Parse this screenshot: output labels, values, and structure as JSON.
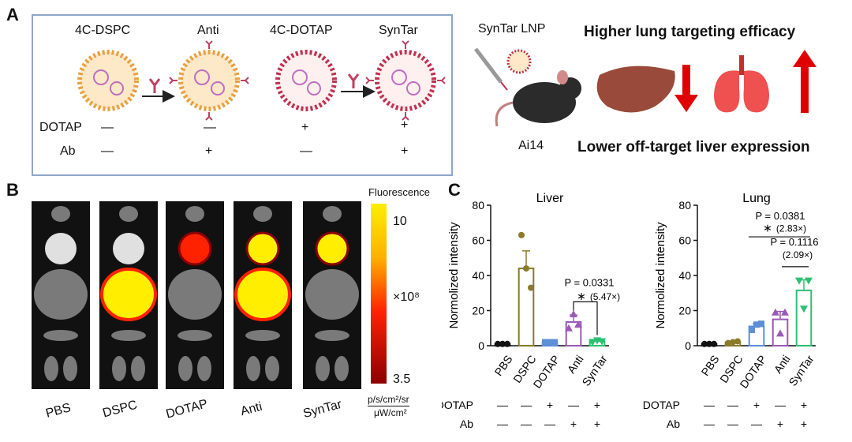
{
  "panels": {
    "a": "A",
    "b": "B",
    "c": "C"
  },
  "panel_a": {
    "formulations": [
      "4C-DSPC",
      "Anti",
      "4C-DOTAP",
      "SynTar"
    ],
    "row_labels": {
      "dotap": "DOTAP",
      "ab": "Ab"
    },
    "dotap_marks": [
      "—",
      "—",
      "+",
      "+"
    ],
    "ab_marks": [
      "—",
      "+",
      "—",
      "+"
    ],
    "lnp_label": "SynTar LNP",
    "mouse_label": "Ai14",
    "headline_top": "Higher lung targeting efficacy",
    "headline_bottom": "Lower off-target liver expression"
  },
  "panel_b": {
    "groups": [
      "PBS",
      "DSPC",
      "DOTAP",
      "Anti",
      "SynTar"
    ],
    "colorbar": {
      "title": "Fluorescence",
      "max": "10",
      "mid": "×10⁸",
      "min": "3.5",
      "unit_top": "p/s/cm²/sr",
      "unit_bottom": "μW/cm²"
    },
    "colors": {
      "low": "#8b0000",
      "mid": "#ff2200",
      "high": "#ffee00",
      "tissue": "#7a7a7a",
      "bg": "#111111"
    }
  },
  "chart_data": [
    {
      "type": "bar",
      "title": "Liver",
      "ylabel": "Normolized intensity",
      "ylim": [
        0,
        80
      ],
      "yticks": [
        "0",
        "20",
        "40",
        "60",
        "80"
      ],
      "categories": [
        "PBS",
        "DSPC",
        "DOTAP",
        "Anti",
        "SynTar"
      ],
      "values": [
        1,
        44,
        2,
        13.5,
        2.5
      ],
      "errors": [
        0.2,
        10,
        0.3,
        4,
        1
      ],
      "points": [
        [
          1,
          1,
          1
        ],
        [
          63,
          44,
          33
        ],
        [
          2,
          2,
          2
        ],
        [
          10,
          18,
          12
        ],
        [
          2,
          3,
          2.5
        ]
      ],
      "colors": [
        "#111111",
        "#8a7a2a",
        "#5b8fd6",
        "#9b59b6",
        "#2fbf71"
      ],
      "markers": [
        "circle",
        "circle",
        "square",
        "triangle",
        "triangle-down"
      ],
      "annotations": [
        {
          "p": "P = 0.0331",
          "star": "∗",
          "fold": "(5.47×)"
        }
      ],
      "dotap": [
        "—",
        "—",
        "+",
        "—",
        "+"
      ],
      "ab": [
        "—",
        "—",
        "—",
        "+",
        "+"
      ]
    },
    {
      "type": "bar",
      "title": "Lung",
      "ylabel": "Normolized intensity",
      "ylim": [
        0,
        80
      ],
      "yticks": [
        "0",
        "20",
        "40",
        "60",
        "80"
      ],
      "categories": [
        "PBS",
        "DSPC",
        "DOTAP",
        "Anti",
        "SynTar"
      ],
      "values": [
        1,
        2,
        11,
        15,
        31.5
      ],
      "errors": [
        0.2,
        0.5,
        1.5,
        4.5,
        6
      ],
      "points": [
        [
          1,
          1,
          1
        ],
        [
          1.5,
          2,
          2.5
        ],
        [
          9,
          12,
          12.5
        ],
        [
          19,
          7,
          19
        ],
        [
          37,
          21,
          37
        ]
      ],
      "colors": [
        "#111111",
        "#8a7a2a",
        "#5b8fd6",
        "#9b59b6",
        "#2fbf71"
      ],
      "markers": [
        "circle",
        "circle",
        "square",
        "triangle",
        "triangle-down"
      ],
      "annotations": [
        {
          "p": "P = 0.0381",
          "star": "∗",
          "fold": "(2.83×)"
        },
        {
          "p": "P = 0.1116",
          "star": "",
          "fold": "(2.09×)"
        }
      ],
      "dotap": [
        "—",
        "—",
        "+",
        "—",
        "+"
      ],
      "ab": [
        "—",
        "—",
        "—",
        "+",
        "+"
      ]
    }
  ]
}
